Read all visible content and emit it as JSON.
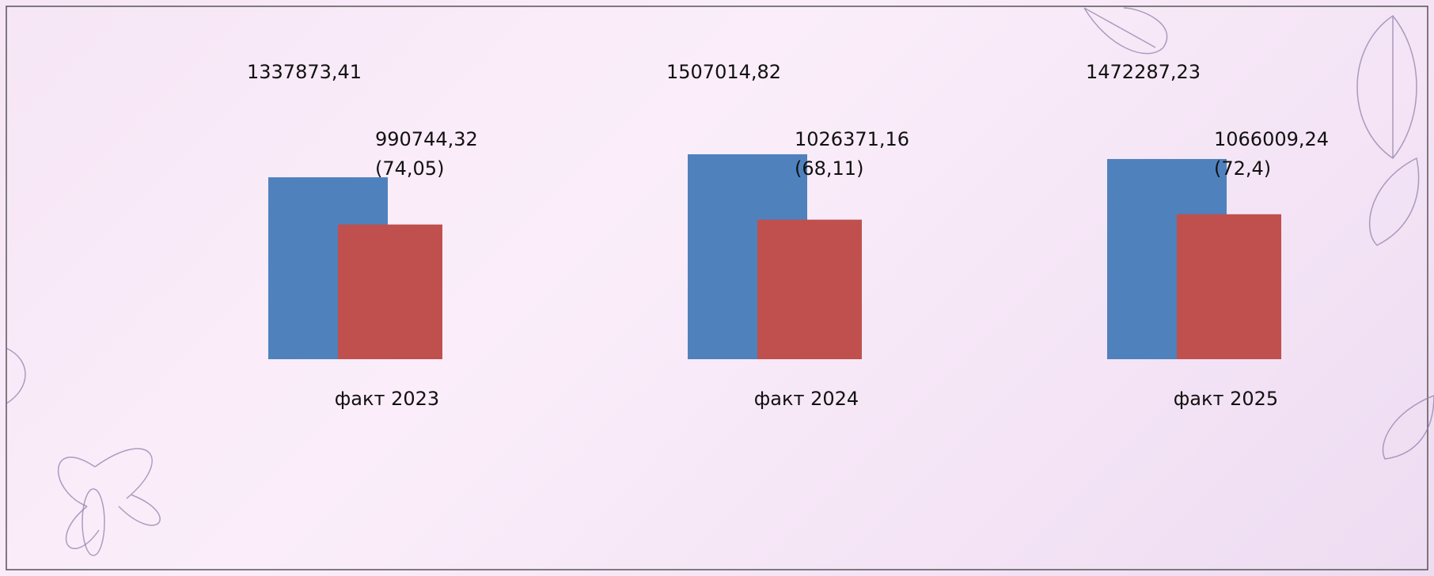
{
  "chart_data": {
    "type": "bar",
    "categories": [
      "факт 2023",
      "факт 2024",
      "факт 2025"
    ],
    "series": [
      {
        "color": "#4f81bd",
        "values": [
          1337873.41,
          1507014.82,
          1472287.23
        ],
        "value_labels": [
          "1337873,41",
          "1507014,82",
          "1472287,23"
        ]
      },
      {
        "color": "#c0504d",
        "values": [
          990744.32,
          1026371.16,
          1066009.24
        ],
        "value_labels": [
          "990744,32",
          "1026371,16",
          "1066009,24"
        ],
        "percent_values": [
          74.05,
          68.11,
          72.4
        ],
        "percent_labels": [
          "(74,05)",
          "(68,11)",
          "(72,4)"
        ]
      }
    ]
  }
}
